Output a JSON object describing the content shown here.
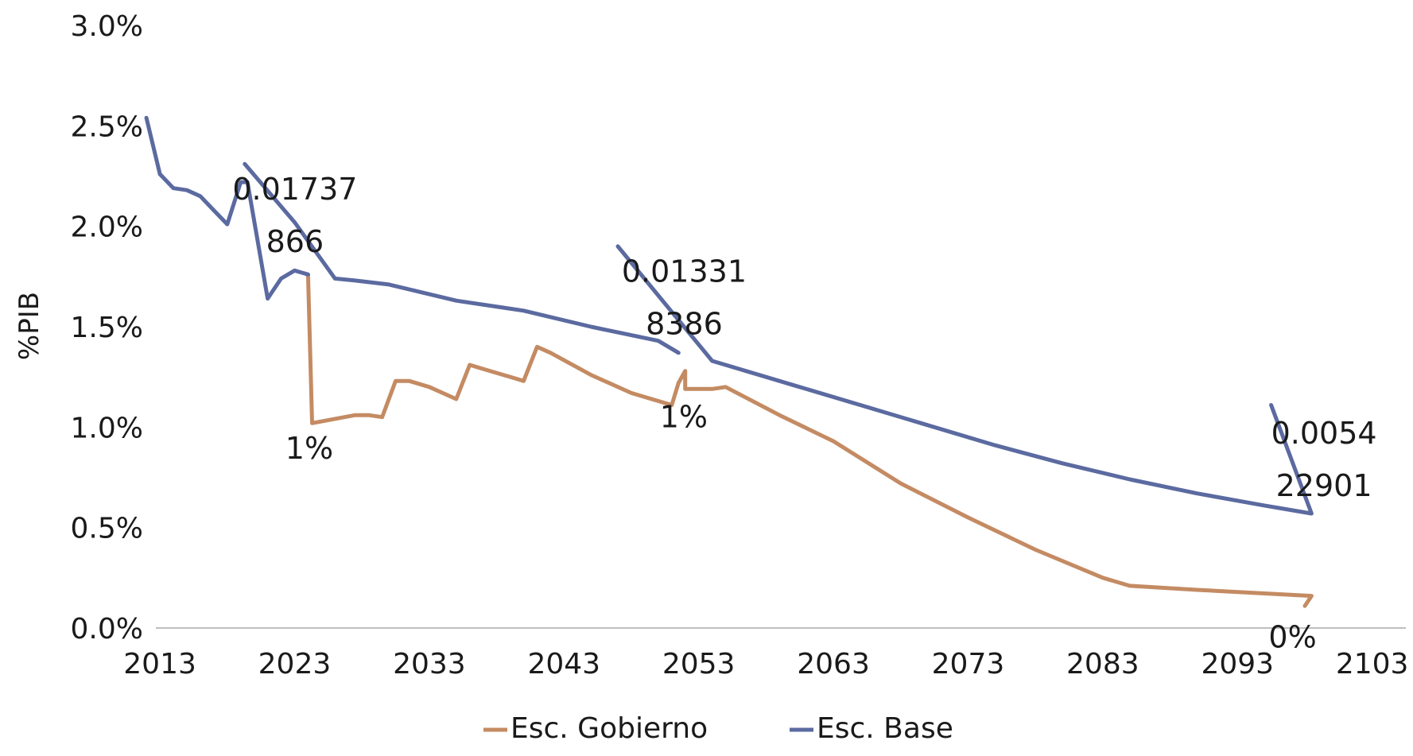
{
  "chart_data": {
    "type": "line",
    "ylabel": "%PIB",
    "xlabel": "",
    "title": "",
    "ylim": [
      0,
      0.03
    ],
    "xlim": [
      2012.7,
      2105.5
    ],
    "yticks": [
      0,
      0.005,
      0.01,
      0.015,
      0.02,
      0.025,
      0.03
    ],
    "ytick_labels": [
      "0.0%",
      "0.5%",
      "1.0%",
      "1.5%",
      "2.0%",
      "2.5%",
      "3.0%"
    ],
    "xticks": [
      2013,
      2023,
      2033,
      2043,
      2053,
      2063,
      2073,
      2083,
      2093,
      2103
    ],
    "xtick_labels": [
      "2013",
      "2023",
      "2033",
      "2043",
      "2053",
      "2063",
      "2073",
      "2083",
      "2093",
      "2103"
    ],
    "grid": false,
    "legend_position": "bottom",
    "series": [
      {
        "name": "Esc. Gobierno",
        "color": "#c48b63",
        "x": [
          2024,
          2024.3,
          2027.5,
          2028.5,
          2029.5,
          2030.5,
          2031.5,
          2033,
          2035,
          2036,
          2037,
          2038.5,
          2040,
          2041,
          2042,
          2045,
          2048,
          2051,
          2051.5,
          2052,
          2052,
          2054,
          2055,
          2059,
          2063,
          2068,
          2073,
          2078,
          2083,
          2085,
          2090,
          2098.5,
          2098.5,
          2098
        ],
        "y": [
          0.0176,
          0.0102,
          0.0106,
          0.0106,
          0.0105,
          0.0123,
          0.0123,
          0.012,
          0.0114,
          0.0131,
          0.0129,
          0.0126,
          0.0123,
          0.014,
          0.0137,
          0.0126,
          0.0117,
          0.0111,
          0.0122,
          0.0128,
          0.0119,
          0.0119,
          0.012,
          0.0106,
          0.0093,
          0.0072,
          0.0055,
          0.0039,
          0.0025,
          0.0021,
          0.0019,
          0.0016,
          0.0016,
          0.0011
        ]
      },
      {
        "name": "Esc. Base",
        "color": "#5b6aa0",
        "segments": [
          {
            "x": [
              2012,
              2013,
              2014,
              2015,
              2016,
              2017,
              2018,
              2019,
              2019.5,
              2021,
              2022,
              2023,
              2024
            ],
            "y": [
              0.0254,
              0.0226,
              0.0219,
              0.0218,
              0.0215,
              0.0208,
              0.0201,
              0.0222,
              0.0222,
              0.0164,
              0.0174,
              0.0178,
              0.0176
            ]
          },
          {
            "x": [
              2019.3,
              2023,
              2026,
              2027.5,
              2030,
              2035,
              2040,
              2045,
              2050,
              2051.5
            ],
            "y": [
              0.0231,
              0.0202,
              0.0174,
              0.0173,
              0.0171,
              0.0163,
              0.0158,
              0.015,
              0.0143,
              0.0137
            ]
          },
          {
            "x": [
              2047,
              2054,
              2060,
              2065,
              2070,
              2075,
              2080,
              2085,
              2090,
              2095,
              2098.5,
              2098.5,
              2095.5
            ],
            "y": [
              0.019,
              0.0133,
              0.0121,
              0.0111,
              0.0101,
              0.0091,
              0.0082,
              0.0074,
              0.0067,
              0.0061,
              0.0057,
              0.0057,
              0.0111
            ]
          }
        ]
      }
    ],
    "annotations": [
      {
        "lines": [
          "0.01737",
          "866"
        ],
        "x": 2019.6,
        "y": 0.02185
      },
      {
        "lines": [
          "0.01331",
          "8386"
        ],
        "x": 2048.5,
        "y": 0.01775
      },
      {
        "lines": [
          "0.0054",
          "22901"
        ],
        "x": 2096,
        "y": 0.0097
      },
      {
        "lines": [
          "1%"
        ],
        "x": 2023.5,
        "y": 0.00895
      },
      {
        "lines": [
          "1%"
        ],
        "x": 2051.3,
        "y": 0.0105
      },
      {
        "lines": [
          "0%"
        ],
        "x": 2096.5,
        "y": -0.00045
      }
    ]
  }
}
